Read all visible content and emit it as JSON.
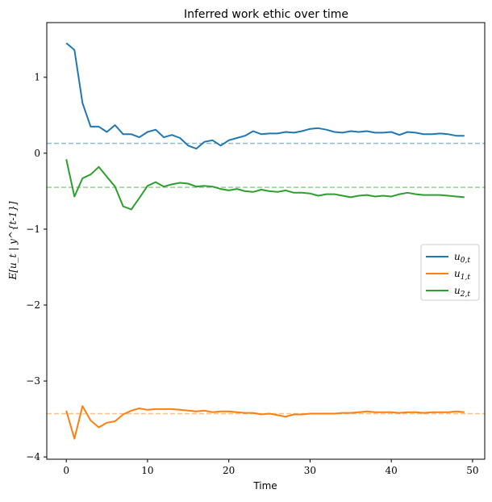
{
  "chart_data": {
    "type": "line",
    "title": "Inferred work ethic over time",
    "xlabel": "Time",
    "ylabel": "E[u_t | y^{t-1}]",
    "xlim": [
      -2.4,
      51.5
    ],
    "ylim": [
      -4.03,
      1.72
    ],
    "xticks": [
      0,
      10,
      20,
      30,
      40,
      50
    ],
    "yticks": [
      1,
      0,
      -1,
      -2,
      -3,
      -4
    ],
    "ytick_labels": [
      "1",
      "0",
      "−1",
      "−2",
      "−3",
      "−4"
    ],
    "grid": false,
    "legend_position": "center-right",
    "x": [
      0,
      1,
      2,
      3,
      4,
      5,
      6,
      7,
      8,
      9,
      10,
      11,
      12,
      13,
      14,
      15,
      16,
      17,
      18,
      19,
      20,
      21,
      22,
      23,
      24,
      25,
      26,
      27,
      28,
      29,
      30,
      31,
      32,
      33,
      34,
      35,
      36,
      37,
      38,
      39,
      40,
      41,
      42,
      43,
      44,
      45,
      46,
      47,
      48,
      49
    ],
    "series": [
      {
        "name": "u_{0,t}",
        "label_main": "u",
        "label_sub": "0,t",
        "color": "#1f77b4",
        "values": [
          1.45,
          1.36,
          0.66,
          0.35,
          0.35,
          0.28,
          0.37,
          0.25,
          0.25,
          0.21,
          0.28,
          0.31,
          0.21,
          0.24,
          0.2,
          0.1,
          0.06,
          0.15,
          0.17,
          0.1,
          0.17,
          0.2,
          0.23,
          0.29,
          0.25,
          0.26,
          0.26,
          0.28,
          0.27,
          0.29,
          0.32,
          0.33,
          0.31,
          0.28,
          0.27,
          0.29,
          0.28,
          0.29,
          0.27,
          0.27,
          0.28,
          0.24,
          0.28,
          0.27,
          0.25,
          0.25,
          0.26,
          0.25,
          0.23,
          0.23
        ],
        "reference": 0.13
      },
      {
        "name": "u_{1,t}",
        "label_main": "u",
        "label_sub": "1,t",
        "color": "#ff7f0e",
        "values": [
          -3.39,
          -3.76,
          -3.33,
          -3.52,
          -3.61,
          -3.55,
          -3.53,
          -3.44,
          -3.39,
          -3.36,
          -3.38,
          -3.37,
          -3.37,
          -3.37,
          -3.38,
          -3.39,
          -3.4,
          -3.39,
          -3.41,
          -3.4,
          -3.4,
          -3.41,
          -3.42,
          -3.42,
          -3.44,
          -3.43,
          -3.45,
          -3.47,
          -3.44,
          -3.44,
          -3.43,
          -3.43,
          -3.43,
          -3.43,
          -3.42,
          -3.42,
          -3.41,
          -3.4,
          -3.41,
          -3.41,
          -3.41,
          -3.42,
          -3.41,
          -3.41,
          -3.42,
          -3.41,
          -3.41,
          -3.41,
          -3.4,
          -3.41
        ],
        "reference": -3.43
      },
      {
        "name": "u_{2,t}",
        "label_main": "u",
        "label_sub": "2,t",
        "color": "#2ca02c",
        "values": [
          -0.08,
          -0.57,
          -0.33,
          -0.28,
          -0.18,
          -0.31,
          -0.44,
          -0.7,
          -0.74,
          -0.59,
          -0.43,
          -0.38,
          -0.44,
          -0.41,
          -0.39,
          -0.4,
          -0.44,
          -0.43,
          -0.44,
          -0.47,
          -0.49,
          -0.47,
          -0.5,
          -0.51,
          -0.48,
          -0.5,
          -0.51,
          -0.49,
          -0.52,
          -0.52,
          -0.53,
          -0.56,
          -0.54,
          -0.54,
          -0.56,
          -0.58,
          -0.56,
          -0.55,
          -0.57,
          -0.56,
          -0.57,
          -0.54,
          -0.52,
          -0.54,
          -0.55,
          -0.55,
          -0.55,
          -0.56,
          -0.57,
          -0.58
        ],
        "reference": -0.45
      }
    ]
  }
}
